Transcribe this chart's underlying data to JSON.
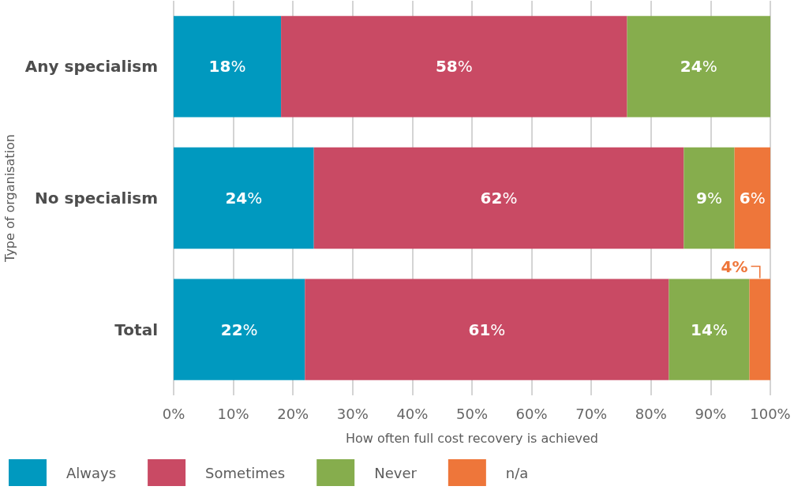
{
  "chart_data": {
    "type": "bar",
    "orientation": "horizontal",
    "stacked": true,
    "categories": [
      "Any specialism",
      "No specialism",
      "Total"
    ],
    "series": [
      {
        "name": "Always",
        "color": "#0099bf",
        "values": [
          18,
          23.5,
          22
        ],
        "value_labels": [
          "18%",
          "24%",
          "22%"
        ]
      },
      {
        "name": "Sometimes",
        "color": "#c94a64",
        "values": [
          58,
          62,
          61
        ],
        "value_labels": [
          "58%",
          "62%",
          "61%"
        ]
      },
      {
        "name": "Never",
        "color": "#86ad4d",
        "values": [
          24,
          8.5,
          13.5
        ],
        "value_labels": [
          "24%",
          "9%",
          "14%"
        ]
      },
      {
        "name": "n/a",
        "color": "#ee763a",
        "values": [
          null,
          6,
          3.5
        ],
        "value_labels": [
          null,
          "6%",
          "4%"
        ]
      }
    ],
    "xlim": [
      0,
      100
    ],
    "xticks": [
      {
        "value": 0,
        "label": "0%"
      },
      {
        "value": 10,
        "label": "10%"
      },
      {
        "value": 20,
        "label": "20%"
      },
      {
        "value": 30,
        "label": "30%"
      },
      {
        "value": 40,
        "label": "40%"
      },
      {
        "value": 50,
        "label": "50%"
      },
      {
        "value": 60,
        "label": "60%"
      },
      {
        "value": 70,
        "label": "70%"
      },
      {
        "value": 80,
        "label": "80%"
      },
      {
        "value": 90,
        "label": "90%"
      },
      {
        "value": 100,
        "label": "100%"
      }
    ],
    "xlabel": "How often full cost recovery is achieved",
    "ylabel": "Type of organisation",
    "grid": "x",
    "legend": "bottom left"
  }
}
